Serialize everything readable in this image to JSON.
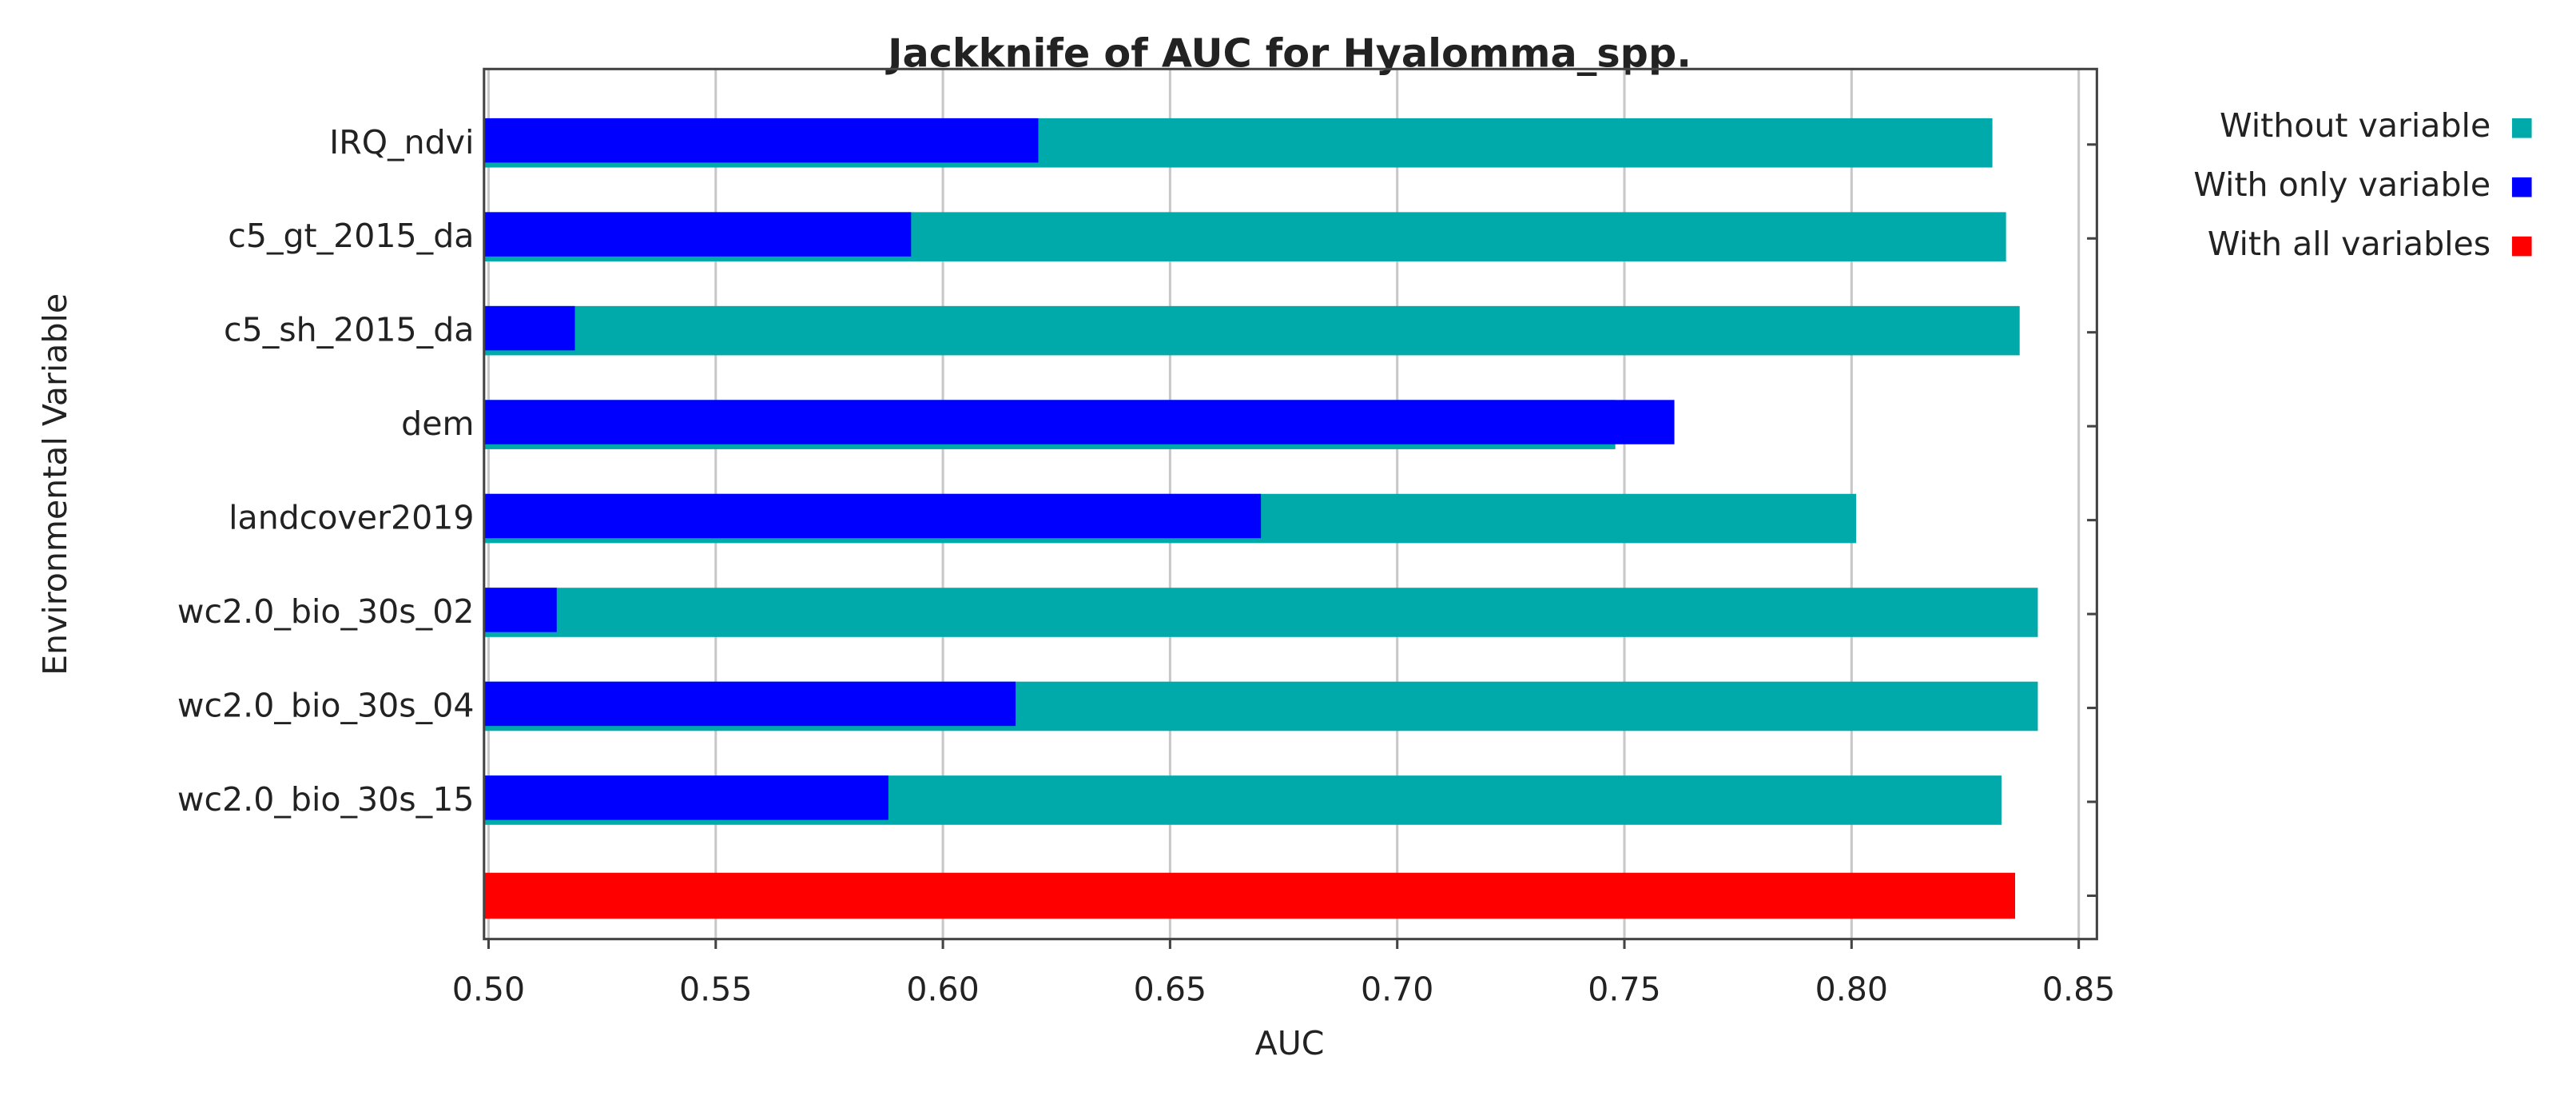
{
  "chart_data": {
    "type": "bar",
    "orientation": "horizontal",
    "title": "Jackknife of AUC for Hyalomma_spp.",
    "x_label": "AUC",
    "y_label": "Environmental Variable",
    "categories": [
      "IRQ_ndvi",
      "c5_gt_2015_da",
      "c5_sh_2015_da",
      "dem",
      "landcover2019",
      "wc2.0_bio_30s_02",
      "wc2.0_bio_30s_04",
      "wc2.0_bio_30s_15",
      null
    ],
    "series": [
      {
        "name": "Without variable",
        "color": "#00aaaa",
        "values": [
          0.831,
          0.834,
          0.837,
          0.748,
          0.801,
          0.841,
          0.841,
          0.833,
          null
        ]
      },
      {
        "name": "With only variable",
        "color": "#0000ff",
        "values": [
          0.621,
          0.593,
          0.519,
          0.761,
          0.67,
          0.515,
          0.616,
          0.588,
          null
        ]
      },
      {
        "name": "With all variables",
        "color": "#ff0000",
        "values": [
          null,
          null,
          null,
          null,
          null,
          null,
          null,
          null,
          0.836
        ]
      }
    ],
    "xlim": [
      0.499,
      0.854
    ],
    "xticks": [
      {
        "value": 0.5,
        "label": "0.50"
      },
      {
        "value": 0.55,
        "label": "0.55"
      },
      {
        "value": 0.6,
        "label": "0.60"
      },
      {
        "value": 0.65,
        "label": "0.65"
      },
      {
        "value": 0.7,
        "label": "0.70"
      },
      {
        "value": 0.75,
        "label": "0.75"
      },
      {
        "value": 0.8,
        "label": "0.80"
      },
      {
        "value": 0.85,
        "label": "0.85"
      }
    ],
    "grid": true,
    "legend": "right"
  }
}
